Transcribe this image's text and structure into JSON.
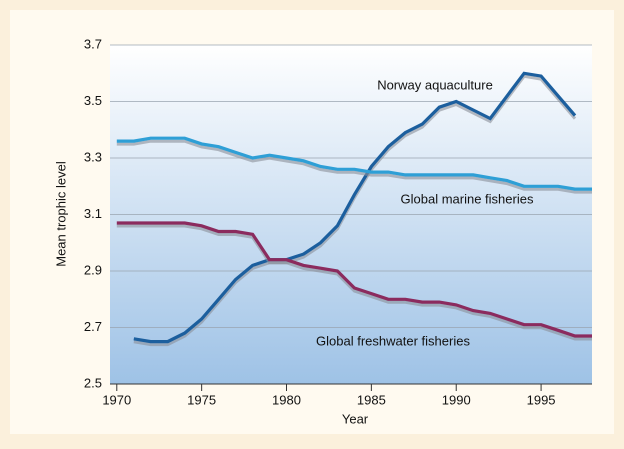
{
  "chart_data": {
    "type": "line",
    "xlabel": "Year",
    "ylabel": "Mean trophic level",
    "xlim": [
      1969.6,
      1998
    ],
    "xticks": [
      1970,
      1975,
      1980,
      1985,
      1990,
      1995
    ],
    "ylim": [
      2.5,
      3.7
    ],
    "yticks": [
      2.5,
      2.7,
      2.9,
      3.1,
      3.3,
      3.5,
      3.7
    ],
    "grid": true,
    "series": [
      {
        "name": "Norway aquaculture",
        "color": "#1c5f9e",
        "x": [
          1971,
          1972,
          1973,
          1974,
          1975,
          1976,
          1977,
          1978,
          1979,
          1980,
          1981,
          1982,
          1983,
          1984,
          1985,
          1986,
          1987,
          1988,
          1989,
          1990,
          1991,
          1992,
          1993,
          1994,
          1995,
          1996,
          1997
        ],
        "values": [
          2.66,
          2.65,
          2.65,
          2.68,
          2.73,
          2.8,
          2.87,
          2.92,
          2.94,
          2.94,
          2.96,
          3.0,
          3.06,
          3.17,
          3.27,
          3.34,
          3.39,
          3.42,
          3.48,
          3.5,
          3.47,
          3.44,
          3.52,
          3.6,
          3.59,
          3.52,
          3.45
        ]
      },
      {
        "name": "Global marine fisheries",
        "color": "#2e9fd6",
        "x": [
          1970,
          1971,
          1972,
          1973,
          1974,
          1975,
          1976,
          1977,
          1978,
          1979,
          1980,
          1981,
          1982,
          1983,
          1984,
          1985,
          1986,
          1987,
          1988,
          1989,
          1990,
          1991,
          1992,
          1993,
          1994,
          1995,
          1996,
          1997,
          1998
        ],
        "values": [
          3.36,
          3.36,
          3.37,
          3.37,
          3.37,
          3.35,
          3.34,
          3.32,
          3.3,
          3.31,
          3.3,
          3.29,
          3.27,
          3.26,
          3.26,
          3.25,
          3.25,
          3.24,
          3.24,
          3.24,
          3.24,
          3.24,
          3.23,
          3.22,
          3.2,
          3.2,
          3.2,
          3.19,
          3.19
        ]
      },
      {
        "name": "Global freshwater fisheries",
        "color": "#8b2b5e",
        "x": [
          1970,
          1971,
          1972,
          1973,
          1974,
          1975,
          1976,
          1977,
          1978,
          1979,
          1980,
          1981,
          1982,
          1983,
          1984,
          1985,
          1986,
          1987,
          1988,
          1989,
          1990,
          1991,
          1992,
          1993,
          1994,
          1995,
          1996,
          1997,
          1998
        ],
        "values": [
          3.07,
          3.07,
          3.07,
          3.07,
          3.07,
          3.06,
          3.04,
          3.04,
          3.03,
          2.94,
          2.94,
          2.92,
          2.91,
          2.9,
          2.84,
          2.82,
          2.8,
          2.8,
          2.79,
          2.79,
          2.78,
          2.76,
          2.75,
          2.73,
          2.71,
          2.71,
          2.69,
          2.67,
          2.67
        ]
      }
    ]
  }
}
